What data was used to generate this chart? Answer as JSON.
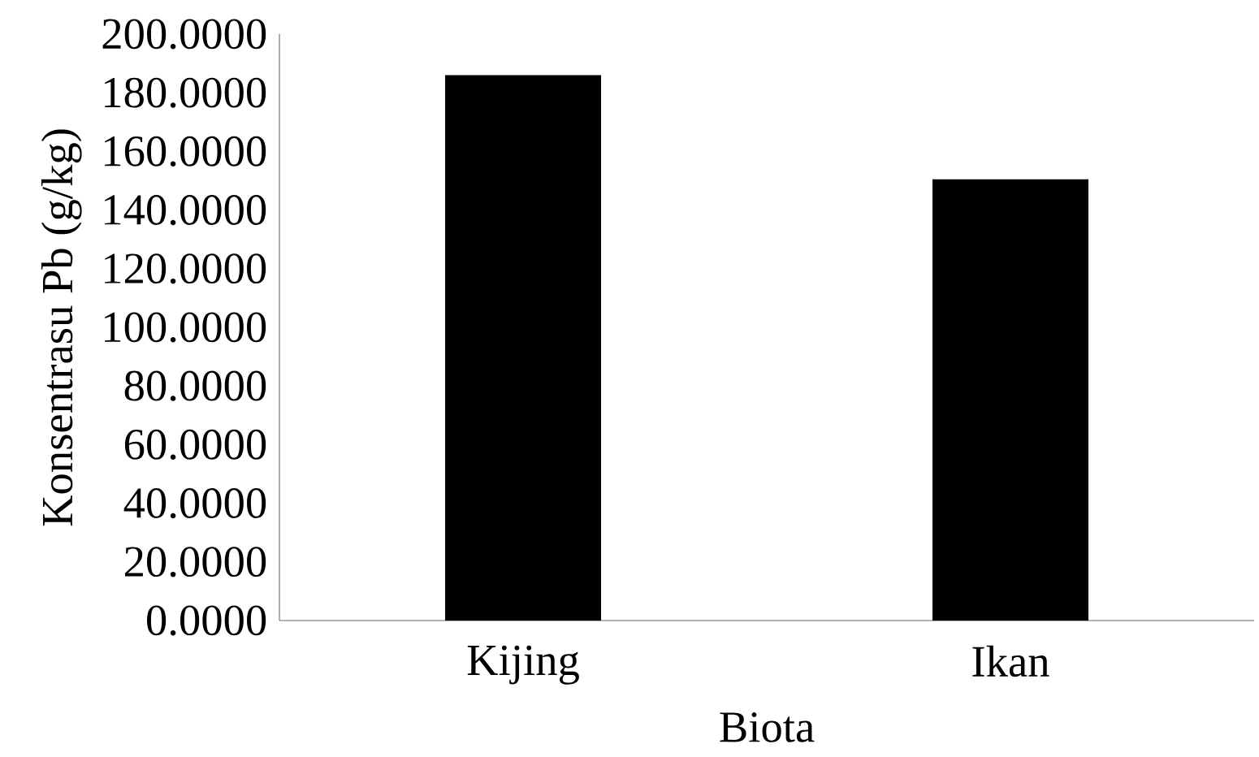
{
  "chart_data": {
    "type": "bar",
    "xlabel": "Biota",
    "ylabel": "Konsentrasu Pb (g/kg)",
    "categories": [
      "Kijing",
      "Ikan"
    ],
    "values": [
      186,
      150.5
    ],
    "color": "#000000",
    "ylim": [
      0,
      200
    ],
    "yticks": [
      {
        "value": 0,
        "label": "0.0000"
      },
      {
        "value": 20,
        "label": "20.0000"
      },
      {
        "value": 40,
        "label": "40.0000"
      },
      {
        "value": 60,
        "label": "60.0000"
      },
      {
        "value": 80,
        "label": "80.0000"
      },
      {
        "value": 100,
        "label": "100.0000"
      },
      {
        "value": 120,
        "label": "120.0000"
      },
      {
        "value": 140,
        "label": "140.0000"
      },
      {
        "value": 160,
        "label": "160.0000"
      },
      {
        "value": 180,
        "label": "180.0000"
      },
      {
        "value": 200,
        "label": "200.0000"
      }
    ],
    "grid": false
  }
}
